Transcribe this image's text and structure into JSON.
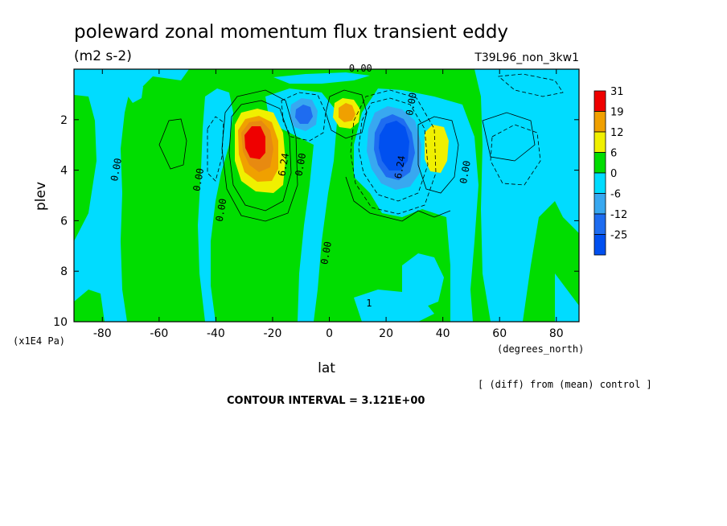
{
  "chart_data": {
    "type": "contour",
    "title": "poleward zonal momentum flux transient eddy",
    "units": "(m2 s-2)",
    "experiment": "T39L96_non_3kw1",
    "xlabel": "lat",
    "xunits": "(degrees_north)",
    "ylabel": "plev",
    "yunits": "(x1E4 Pa)",
    "note": "[ (diff) from (mean) control ]",
    "contour_interval": "CONTOUR INTERVAL = 3.121E+00",
    "xlim": [
      -90,
      88
    ],
    "ylim": [
      10,
      0
    ],
    "x_ticks": [
      -80,
      -60,
      -40,
      -20,
      0,
      20,
      40,
      60,
      80
    ],
    "x_tick_labels": [
      "-80",
      "-60",
      "-40",
      "-20",
      "0",
      "20",
      "40",
      "60",
      "80"
    ],
    "y_ticks": [
      2,
      4,
      6,
      8,
      10
    ],
    "y_tick_labels": [
      "2",
      "4",
      "6",
      "8",
      "10"
    ],
    "colorbar": {
      "labels": [
        "31",
        "19",
        "12",
        "6",
        "0",
        "-6",
        "-12",
        "-25"
      ],
      "colors": [
        "#ef0000",
        "#f0a000",
        "#f0f000",
        "#00dd00",
        "#00dcff",
        "#38a8f0",
        "#1e6cf0",
        "#0050f0"
      ]
    },
    "colors": {
      "positive_small": "#00dd00",
      "negative_small": "#00dcff",
      "red": "#ef0000",
      "orange": "#f0a000",
      "yellow": "#f0f000",
      "blue_mid": "#38a8f0",
      "blue_dark": "#1e6cf0"
    },
    "features": [
      {
        "name": "positive max",
        "lat": -26,
        "plev": 2.9,
        "level": "31"
      },
      {
        "name": "negative min",
        "lat": -7,
        "plev": 2.0,
        "level": "-12"
      },
      {
        "name": "positive max",
        "lat": 7,
        "plev": 1.9,
        "level": "12"
      },
      {
        "name": "negative min",
        "lat": 25,
        "plev": 3.0,
        "level": "-25"
      },
      {
        "name": "positive max",
        "lat": 38,
        "plev": 3.1,
        "level": "6"
      }
    ],
    "contour_labels": [
      {
        "text": "0.00",
        "lat": 11,
        "plev": 0.1
      },
      {
        "text": "0.00",
        "lat": 30,
        "plev": 1.4
      },
      {
        "text": "0.00",
        "lat": -74,
        "plev": 4.0
      },
      {
        "text": "0.00",
        "lat": -45,
        "plev": 4.4
      },
      {
        "text": "0.00",
        "lat": -37,
        "plev": 5.6
      },
      {
        "text": "6.24",
        "lat": -15,
        "plev": 3.8
      },
      {
        "text": "0.00",
        "lat": -9,
        "plev": 3.8
      },
      {
        "text": "6.24",
        "lat": 26,
        "plev": 3.9
      },
      {
        "text": "0.00",
        "lat": 49,
        "plev": 4.1
      },
      {
        "text": "0.00",
        "lat": 0,
        "plev": 7.3
      },
      {
        "text": "1",
        "lat": 14,
        "plev": 9.4
      }
    ]
  }
}
